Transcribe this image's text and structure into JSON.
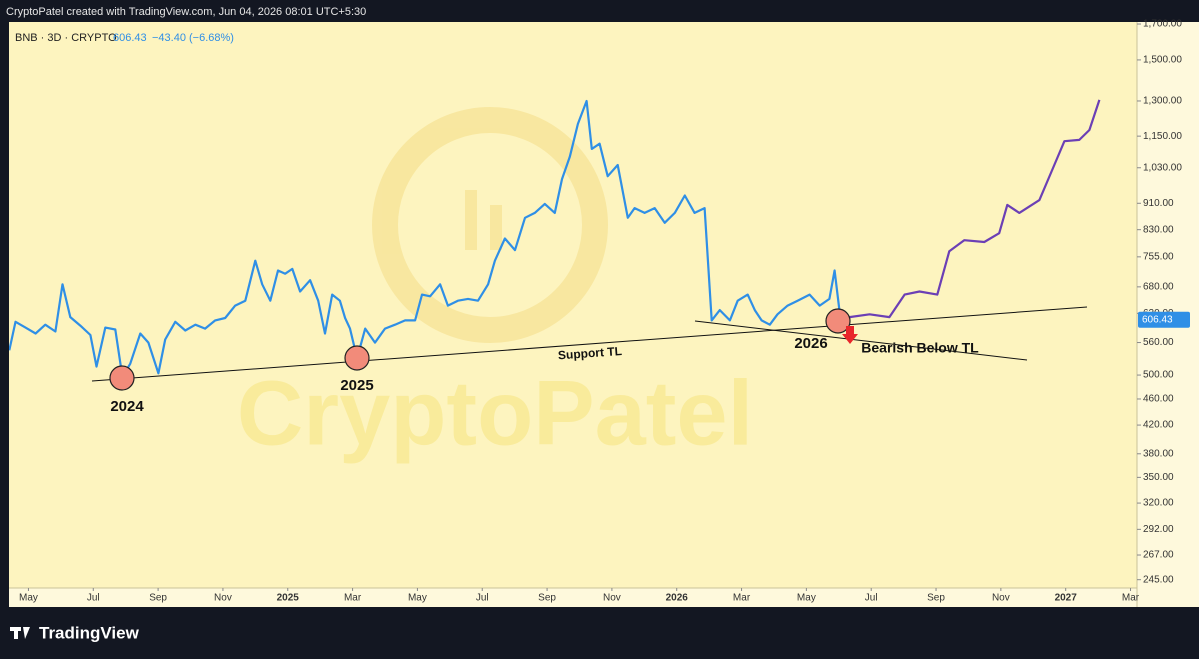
{
  "chart_data": {
    "type": "line",
    "credit": "CryptoPatel created with TradingView.com, Jun 04, 2026 08:01 UTC+5:30",
    "symbol": "BNB · 3D · CRYPTO",
    "last_price": 606.43,
    "change": "−43.40 (−6.68%)",
    "watermark": "CryptoPatel",
    "footer_brand": "TradingView",
    "annotations": [
      "2024",
      "2025",
      "2026",
      "Support TL",
      "Bearish Below TL"
    ],
    "log_scale": true,
    "grid": false,
    "xlim": [
      3.4,
      38.2
    ],
    "ylim": [
      238,
      1712
    ],
    "xticks": [
      {
        "value": 4,
        "label": "May"
      },
      {
        "value": 6,
        "label": "Jul"
      },
      {
        "value": 8,
        "label": "Sep"
      },
      {
        "value": 10,
        "label": "Nov"
      },
      {
        "value": 12,
        "label": "2025"
      },
      {
        "value": 14,
        "label": "Mar"
      },
      {
        "value": 16,
        "label": "May"
      },
      {
        "value": 18,
        "label": "Jul"
      },
      {
        "value": 20,
        "label": "Sep"
      },
      {
        "value": 22,
        "label": "Nov"
      },
      {
        "value": 24,
        "label": "2026"
      },
      {
        "value": 26,
        "label": "Mar"
      },
      {
        "value": 28,
        "label": "May"
      },
      {
        "value": 30,
        "label": "Jul"
      },
      {
        "value": 32,
        "label": "Sep"
      },
      {
        "value": 34,
        "label": "Nov"
      },
      {
        "value": 36,
        "label": "2027"
      },
      {
        "value": 38,
        "label": "Mar"
      }
    ],
    "yticks": [
      {
        "value": 245,
        "label": "245.00"
      },
      {
        "value": 267,
        "label": "267.00"
      },
      {
        "value": 292,
        "label": "292.00"
      },
      {
        "value": 320,
        "label": "320.00"
      },
      {
        "value": 350,
        "label": "350.00"
      },
      {
        "value": 380,
        "label": "380.00"
      },
      {
        "value": 420,
        "label": "420.00"
      },
      {
        "value": 460,
        "label": "460.00"
      },
      {
        "value": 500,
        "label": "500.00"
      },
      {
        "value": 560,
        "label": "560.00"
      },
      {
        "value": 620,
        "label": "620.00"
      },
      {
        "value": 680,
        "label": "680.00"
      },
      {
        "value": 755,
        "label": "755.00"
      },
      {
        "value": 830,
        "label": "830.00"
      },
      {
        "value": 910,
        "label": "910.00"
      },
      {
        "value": 1030,
        "label": "1,030.00"
      },
      {
        "value": 1150,
        "label": "1,150.00"
      },
      {
        "value": 1300,
        "label": "1,300.00"
      },
      {
        "value": 1500,
        "label": "1,500.00"
      },
      {
        "value": 1700,
        "label": "1,700.00"
      }
    ],
    "series": [
      {
        "color": "#2f8fe6",
        "x": [
          3.41,
          3.6,
          3.91,
          4.22,
          4.52,
          4.83,
          5.05,
          5.29,
          5.6,
          5.91,
          6.1,
          6.37,
          6.68,
          6.9,
          7.14,
          7.45,
          7.7,
          8.01,
          8.22,
          8.53,
          8.84,
          9.15,
          9.45,
          9.76,
          10.07,
          10.38,
          10.69,
          11.0,
          11.21,
          11.46,
          11.7,
          11.92,
          12.14,
          12.38,
          12.69,
          12.94,
          13.15,
          13.37,
          13.61,
          13.77,
          13.92,
          14.14,
          14.39,
          14.69,
          15.0,
          15.31,
          15.62,
          15.93,
          16.14,
          16.39,
          16.7,
          16.94,
          17.25,
          17.56,
          17.87,
          18.18,
          18.39,
          18.7,
          19.01,
          19.32,
          19.62,
          19.93,
          20.24,
          20.46,
          20.7,
          20.95,
          21.22,
          21.38,
          21.62,
          21.87,
          22.18,
          22.49,
          22.7,
          23.01,
          23.32,
          23.63,
          23.94,
          24.25,
          24.55,
          24.86,
          25.08,
          25.33,
          25.64,
          25.88,
          26.19,
          26.41,
          26.62,
          26.87,
          27.11,
          27.42,
          27.73,
          28.1,
          28.41,
          28.71,
          28.87,
          29.02,
          29.27
        ],
        "values": [
          545,
          602,
          590,
          578,
          596,
          582,
          686,
          612,
          594,
          575,
          515,
          590,
          586,
          497,
          520,
          578,
          560,
          503,
          566,
          602,
          584,
          596,
          588,
          605,
          610,
          637,
          648,
          745,
          686,
          648,
          720,
          712,
          724,
          669,
          696,
          648,
          578,
          662,
          648,
          610,
          588,
          530,
          588,
          560,
          588,
          596,
          605,
          605,
          662,
          658,
          686,
          637,
          648,
          652,
          648,
          686,
          745,
          805,
          773,
          865,
          880,
          908,
          880,
          990,
          1070,
          1200,
          1300,
          1100,
          1120,
          1000,
          1040,
          865,
          895,
          880,
          895,
          850,
          880,
          935,
          880,
          895,
          605,
          627,
          605,
          648,
          662,
          627,
          605,
          596,
          618,
          637,
          648,
          662,
          637,
          652,
          720,
          627,
          596
        ]
      },
      {
        "color": "#6b3fb5",
        "x": [
          29.27,
          29.33,
          29.95,
          30.56,
          31.03,
          31.49,
          32.04,
          32.41,
          32.87,
          33.49,
          33.95,
          34.2,
          34.57,
          35.19,
          35.65,
          35.96,
          36.42,
          36.73,
          37.04
        ],
        "values": [
          596,
          612,
          618,
          612,
          662,
          669,
          662,
          770,
          800,
          795,
          820,
          905,
          880,
          920,
          1040,
          1130,
          1135,
          1175,
          1305
        ]
      }
    ]
  }
}
